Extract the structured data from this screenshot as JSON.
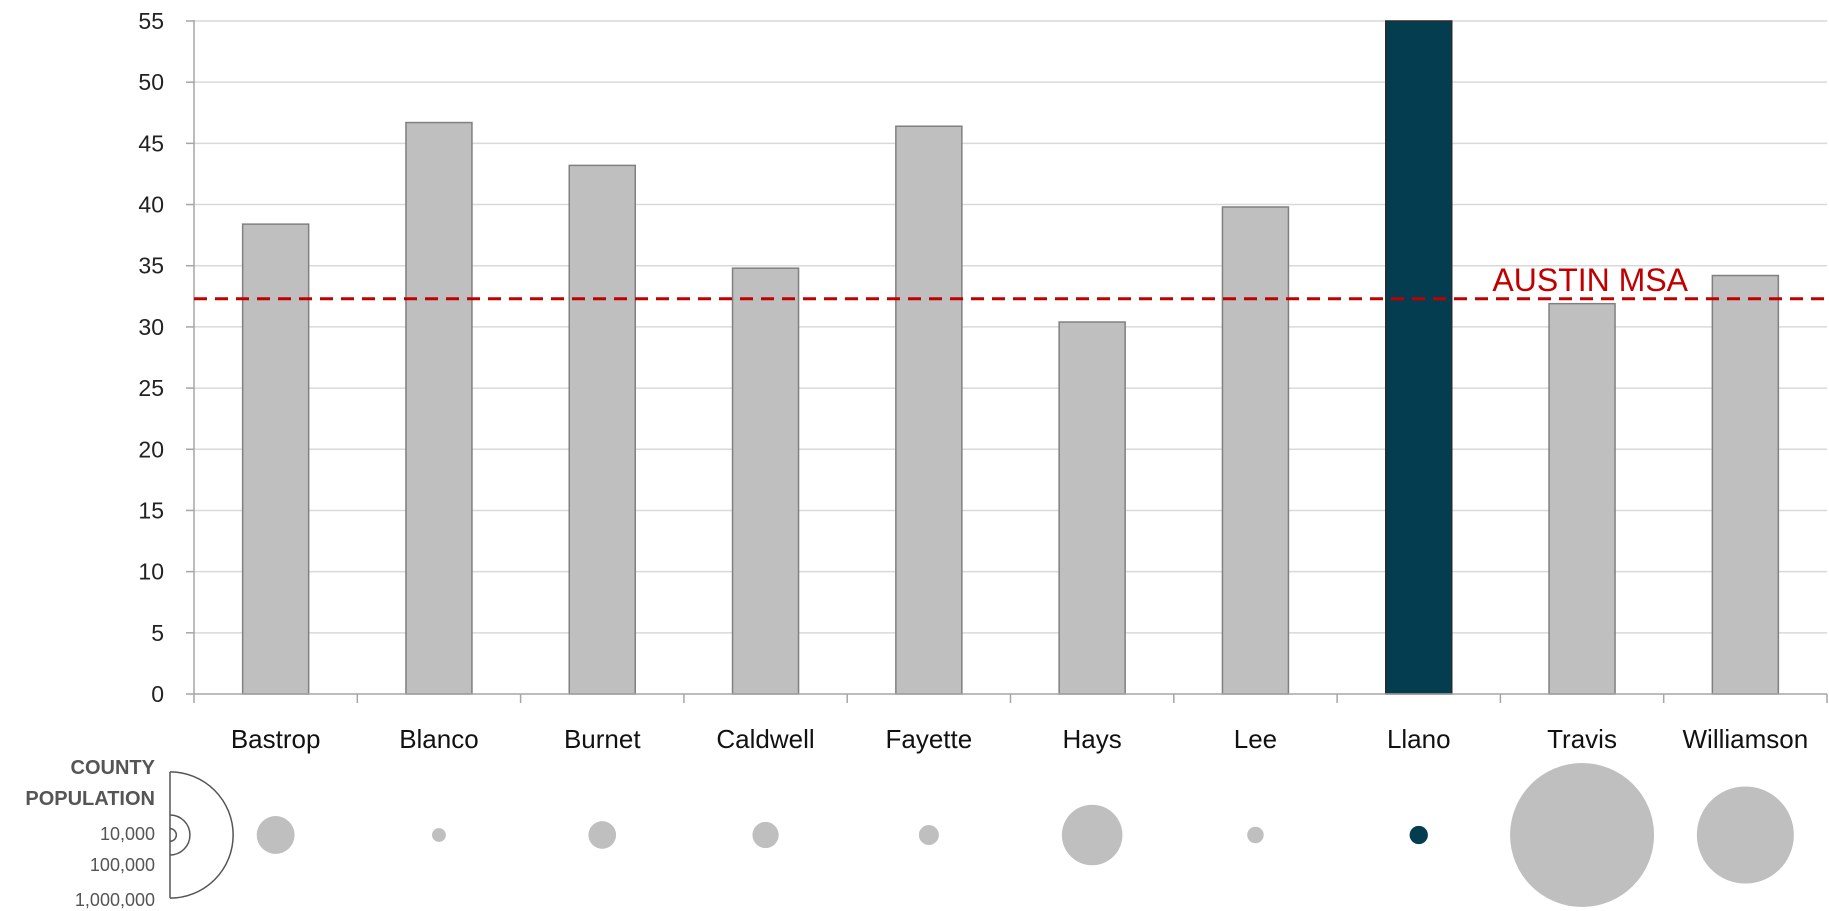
{
  "chart_data": {
    "type": "bar",
    "categories": [
      "Bastrop",
      "Blanco",
      "Burnet",
      "Caldwell",
      "Fayette",
      "Hays",
      "Lee",
      "Llano",
      "Travis",
      "Williamson"
    ],
    "values": [
      38.4,
      46.7,
      43.2,
      34.8,
      46.4,
      30.4,
      39.8,
      55,
      31.9,
      34.2
    ],
    "highlight_category": "Llano",
    "ylim": [
      0,
      55
    ],
    "yticks": [
      0,
      5,
      10,
      15,
      20,
      25,
      30,
      35,
      40,
      45,
      50,
      55
    ],
    "grid": true,
    "reference_line": {
      "label": "AUSTIN MSA",
      "value": 32.3
    },
    "population_bubbles": {
      "legend_title": [
        "COUNTY",
        "POPULATION"
      ],
      "legend_ticks": [
        "10,000",
        "100,000",
        "1,000,000"
      ],
      "legend_tick_values": [
        10000,
        100000,
        1000000
      ],
      "values": [
        90000,
        12000,
        48000,
        43000,
        25000,
        230000,
        17000,
        21000,
        1300000,
        590000
      ]
    },
    "colors": {
      "bar": "#bfbfbf",
      "bar_stroke": "#808080",
      "highlight": "#033d4f",
      "reference_line": "#c00000",
      "grid": "#d9d9d9",
      "axis": "#a6a6a6"
    }
  }
}
